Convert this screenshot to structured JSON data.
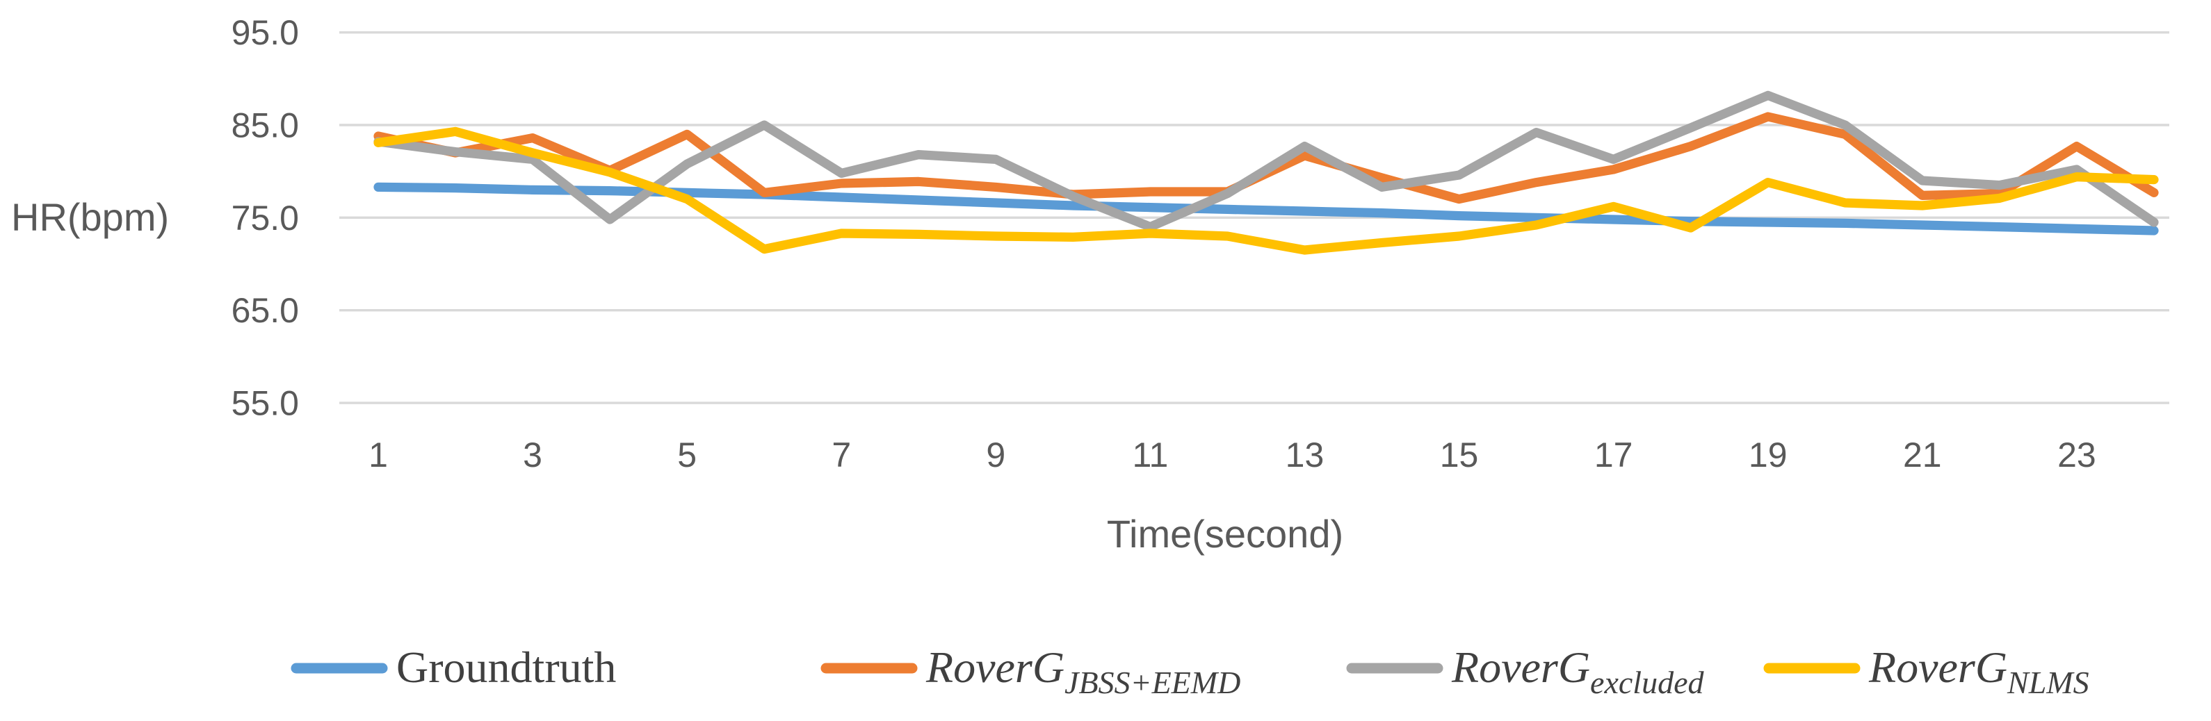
{
  "chart_data": {
    "type": "line",
    "title": "",
    "xlabel": "Time(second)",
    "ylabel": "HR(bpm)",
    "grid": true,
    "legend_position": "bottom",
    "x": [
      1,
      2,
      3,
      4,
      5,
      6,
      7,
      8,
      9,
      10,
      11,
      12,
      13,
      14,
      15,
      16,
      17,
      18,
      19,
      20,
      21,
      22,
      23,
      24
    ],
    "x_tick_labels": [
      "1",
      "3",
      "5",
      "7",
      "9",
      "11",
      "13",
      "15",
      "17",
      "19",
      "21",
      "23"
    ],
    "x_tick_values": [
      1,
      3,
      5,
      7,
      9,
      11,
      13,
      15,
      17,
      19,
      21,
      23
    ],
    "y_tick_labels": [
      "95.0",
      "85.0",
      "75.0",
      "65.0",
      "55.0"
    ],
    "y_tick_values": [
      95,
      85,
      75,
      65,
      55
    ],
    "ylim": [
      55,
      95
    ],
    "xlim": [
      1,
      24
    ],
    "series": [
      {
        "name": "Groundtruth",
        "name_main": "Groundtruth",
        "name_sub": "",
        "color": "#5B9BD5",
        "values": [
          78.3,
          78.2,
          78.0,
          77.9,
          77.7,
          77.5,
          77.2,
          76.9,
          76.6,
          76.3,
          76.1,
          75.9,
          75.7,
          75.5,
          75.2,
          75.0,
          74.8,
          74.6,
          74.5,
          74.4,
          74.2,
          74.0,
          73.8,
          73.6
        ]
      },
      {
        "name": "RoverG_JBSS+EEMD",
        "name_main": "RoverG",
        "name_sub": "JBSS+EEMD",
        "color": "#ED7D31",
        "values": [
          83.8,
          82.0,
          83.6,
          80.1,
          84.0,
          77.7,
          78.7,
          78.9,
          78.3,
          77.5,
          77.8,
          77.8,
          81.7,
          79.3,
          77.0,
          78.8,
          80.2,
          82.7,
          85.9,
          84.0,
          77.4,
          77.6,
          82.7,
          77.7
        ]
      },
      {
        "name": "RoverG_excluded",
        "name_main": "RoverG",
        "name_sub": "excluded",
        "color": "#A5A5A5",
        "values": [
          83.2,
          82.1,
          81.3,
          74.8,
          80.8,
          85.0,
          79.8,
          81.8,
          81.3,
          77.3,
          74.0,
          77.6,
          82.7,
          78.3,
          79.6,
          84.2,
          81.3,
          84.7,
          88.2,
          85.0,
          79.0,
          78.5,
          80.2,
          74.5
        ]
      },
      {
        "name": "RoverG_NLMS",
        "name_main": "RoverG",
        "name_sub": "NLMS",
        "color": "#FFC000",
        "values": [
          83.1,
          84.3,
          82.0,
          79.9,
          77.0,
          71.6,
          73.3,
          73.2,
          73.0,
          72.9,
          73.3,
          73.0,
          71.5,
          72.3,
          73.0,
          74.2,
          76.2,
          73.9,
          78.8,
          76.6,
          76.3,
          77.1,
          79.4,
          79.1
        ]
      }
    ],
    "style": {
      "gridline_color": "#d9d9d9",
      "text_color": "#595959",
      "background": "#ffffff"
    }
  }
}
